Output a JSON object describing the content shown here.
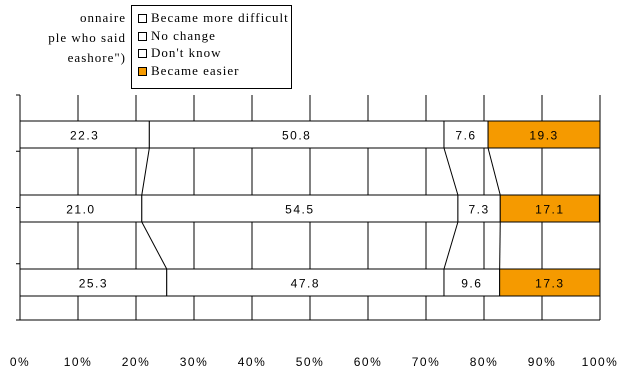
{
  "note": {
    "lines": [
      "onnaire",
      "ple who said",
      "eashore\")"
    ]
  },
  "colors": {
    "easier": "#f59a00",
    "other": "#ffffff",
    "stroke": "#000000"
  },
  "chart_data": {
    "type": "bar",
    "orientation": "horizontal",
    "stacked": true,
    "percent": true,
    "categories": [
      "",
      "",
      ""
    ],
    "series": [
      {
        "name": "Became more difficult",
        "values": [
          22.3,
          21.0,
          25.3
        ]
      },
      {
        "name": "No change",
        "values": [
          50.8,
          54.5,
          47.8
        ]
      },
      {
        "name": "Don't know",
        "values": [
          7.6,
          7.3,
          9.6
        ]
      },
      {
        "name": "Became easier",
        "values": [
          19.3,
          17.1,
          17.3
        ]
      }
    ],
    "xlim": [
      0,
      100
    ],
    "xticks": [
      "0%",
      "10%",
      "20%",
      "30%",
      "40%",
      "50%",
      "60%",
      "70%",
      "80%",
      "90%",
      "100%"
    ],
    "grid": true,
    "legend_position": "top",
    "title": "",
    "xlabel": "",
    "ylabel": ""
  }
}
